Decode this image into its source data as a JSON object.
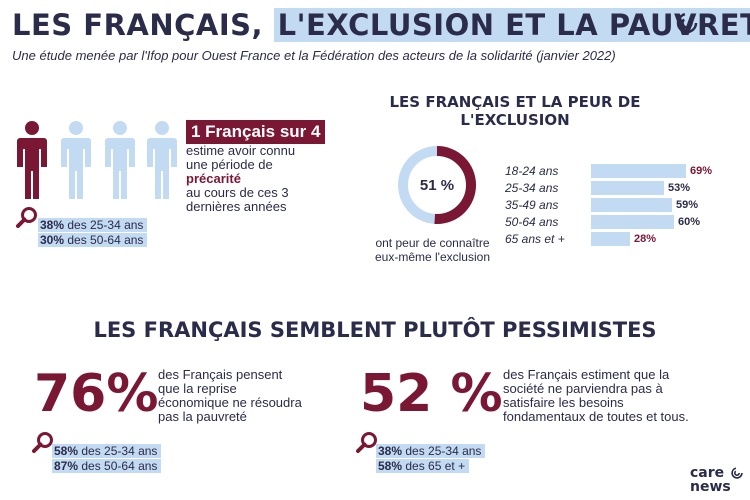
{
  "header": {
    "title_part1": "LES FRANÇAIS,",
    "title_part2": "L'EXCLUSION ET LA PAUVRETÉ",
    "subtitle": "Une étude menée par l'Ifop pour Ouest France et la Fédération des acteurs de la solidarité (janvier 2022)"
  },
  "block1": {
    "headline": "1 Français sur 4",
    "line1": "estime avoir connu",
    "line2": "une période de",
    "emphasis": "précarité",
    "line3": "au cours de ces 3",
    "line4": "dernières années",
    "stats": [
      {
        "value": "38%",
        "label": "des 25-34 ans"
      },
      {
        "value": "30%",
        "label": "des 50-64 ans"
      }
    ]
  },
  "block2": {
    "title_line1": "LES FRANÇAIS ET LA PEUR DE",
    "title_line2": "L'EXCLUSION",
    "donut_value": "51 %",
    "donut_fraction": 0.51,
    "caption_line1": "ont peur de connaître",
    "caption_line2": "eux-même l'exclusion",
    "age_groups": [
      {
        "label": "18-24 ans",
        "value": "69%",
        "fraction": 0.69,
        "color": "#7a1734"
      },
      {
        "label": "25-34 ans",
        "value": "53%",
        "fraction": 0.53,
        "color": "#2b2b4a"
      },
      {
        "label": "35-49 ans",
        "value": "59%",
        "fraction": 0.59,
        "color": "#2b2b4a"
      },
      {
        "label": "50-64 ans",
        "value": "60%",
        "fraction": 0.6,
        "color": "#2b2b4a"
      },
      {
        "label": "65 ans et +",
        "value": "28%",
        "fraction": 0.28,
        "color": "#7a1734"
      }
    ]
  },
  "section2": {
    "title": "LES FRANÇAIS SEMBLENT PLUTÔT PESSIMISTES",
    "left": {
      "big": "76%",
      "line1": "des Français pensent",
      "line2": "que la reprise",
      "line3": "économique ne résoudra",
      "line4": "pas la pauvreté",
      "stats": [
        {
          "value": "58%",
          "label": "des 25-34 ans"
        },
        {
          "value": "87%",
          "label": "des 50-64 ans"
        }
      ]
    },
    "right": {
      "big": "52 %",
      "line1": "des Français estiment que la",
      "line2": "société ne parviendra pas à",
      "line3": "satisfaire les besoins",
      "line4": "fondamentaux de toutes et tous.",
      "stats": [
        {
          "value": "38%",
          "label": "des 25-34 ans"
        },
        {
          "value": "58%",
          "label": "des 65 et +"
        }
      ]
    }
  },
  "footer": {
    "logo_line1": "care",
    "logo_line2": "news"
  },
  "colors": {
    "navy": "#2b2b4a",
    "burgundy": "#7a1734",
    "light_blue": "#c3daf3"
  }
}
